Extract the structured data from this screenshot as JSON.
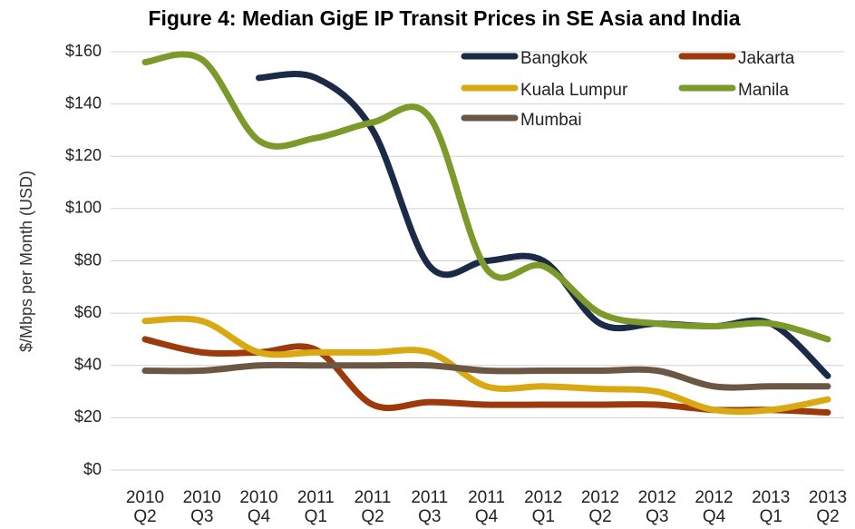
{
  "chart_data": {
    "type": "line",
    "title": "Figure 4: Median GigE IP Transit Prices in SE Asia and India",
    "y_label": "$/Mbps per Month (USD)",
    "categories": [
      "2010 Q2",
      "2010 Q3",
      "2010 Q4",
      "2011 Q1",
      "2011 Q2",
      "2011 Q3",
      "2011 Q4",
      "2012 Q1",
      "2012 Q2",
      "2012 Q3",
      "2012 Q4",
      "2013 Q1",
      "2013 Q2"
    ],
    "series": [
      {
        "name": "Bangkok",
        "color": "#1b2a47",
        "values": [
          null,
          null,
          150,
          150,
          130,
          78,
          80,
          80,
          56,
          56,
          55,
          56,
          36
        ]
      },
      {
        "name": "Jakarta",
        "color": "#9c3a0c",
        "values": [
          50,
          45,
          45,
          46,
          25,
          26,
          25,
          25,
          25,
          25,
          23,
          23,
          22
        ]
      },
      {
        "name": "Kuala Lumpur",
        "color": "#d8a913",
        "values": [
          57,
          57,
          45,
          45,
          45,
          45,
          32,
          32,
          31,
          30,
          23,
          23,
          27
        ]
      },
      {
        "name": "Manila",
        "color": "#7b9a2a",
        "values": [
          156,
          157,
          126,
          127,
          133,
          135,
          77,
          78,
          60,
          56,
          55,
          56,
          50
        ]
      },
      {
        "name": "Mumbai",
        "color": "#6b5744",
        "values": [
          38,
          38,
          40,
          40,
          40,
          40,
          38,
          38,
          38,
          38,
          32,
          32,
          32
        ]
      }
    ],
    "ylim": [
      0,
      160
    ],
    "yticks": [
      {
        "value": 0,
        "label": "$0"
      },
      {
        "value": 20,
        "label": "$20"
      },
      {
        "value": 40,
        "label": "$40"
      },
      {
        "value": 60,
        "label": "$60"
      },
      {
        "value": 80,
        "label": "$80"
      },
      {
        "value": 100,
        "label": "$100"
      },
      {
        "value": 120,
        "label": "$120"
      },
      {
        "value": 140,
        "label": "$140"
      },
      {
        "value": 160,
        "label": "$160"
      }
    ],
    "grid": true
  }
}
